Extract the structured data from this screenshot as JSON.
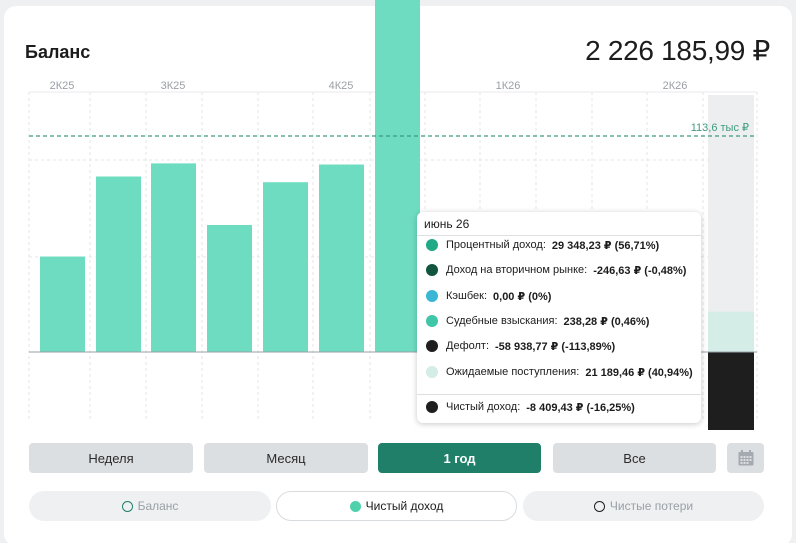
{
  "header": {
    "title": "Баланс",
    "total": "2 226 185,99 ₽"
  },
  "chart_data": {
    "type": "bar",
    "x_ticks": [
      "2К25",
      "3К25",
      "4К25",
      "1К26",
      "2К26"
    ],
    "values_thousand_rub": [
      50.2,
      92.3,
      99.2,
      66.8,
      89.3,
      98.6,
      222.0
    ],
    "reference_line": {
      "label": "113,6 тыс ₽",
      "value": 113.6
    },
    "ylim": [
      -60,
      265
    ],
    "highlight_period": {
      "label": "июнь 26",
      "expected_value": 21.19,
      "default_value": -58.94
    },
    "colors": {
      "bar": "#6ddcc0",
      "reference": "#3d9c80",
      "default": "#1e1e1e",
      "expected": "#d4ede6"
    }
  },
  "tooltip": {
    "date": "июнь 26",
    "rows": [
      {
        "label": "Процентный доход:",
        "value": "29 348,23 ₽ (56,71%)",
        "color": "#1fa985"
      },
      {
        "label": "Доход на вторичном рынке:",
        "value": "-246,63 ₽ (-0,48%)",
        "color": "#11553f"
      },
      {
        "label": "Кэшбек:",
        "value": "0,00 ₽ (0%)",
        "color": "#3bb6d4"
      },
      {
        "label": "Судебные взыскания:",
        "value": "238,28 ₽ (0,46%)",
        "color": "#3ec6a6"
      },
      {
        "label": "Дефолт:",
        "value": "-58 938,77 ₽ (-113,89%)",
        "color": "#1e1e1e"
      },
      {
        "label": "Ожидаемые поступления:",
        "value": "21 189,46 ₽ (40,94%)",
        "color": "#d4ede6"
      }
    ],
    "net": {
      "label": "Чистый доход:",
      "value": "-8 409,43 ₽ (-16,25%)",
      "color": "#1e1e1e"
    }
  },
  "periods": {
    "week": "Неделя",
    "month": "Месяц",
    "year": "1 год",
    "all": "Все",
    "active": "year"
  },
  "calendar_icon": "calendar-icon",
  "toggles": [
    {
      "label": "Баланс",
      "ring_color": "#1f7f69",
      "active": false
    },
    {
      "label": "Чистый доход",
      "ring_color": "#4fd1ad",
      "active": true
    },
    {
      "label": "Чистые потери",
      "ring_color": "#1e1e1e",
      "active": false
    }
  ]
}
